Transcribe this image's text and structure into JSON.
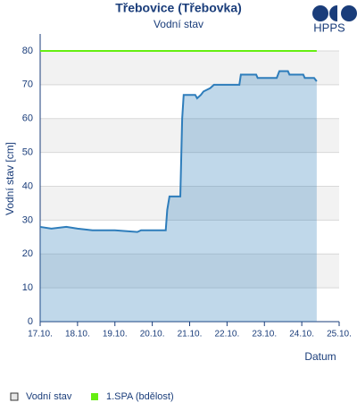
{
  "chart_data": {
    "type": "area",
    "title": "Třebovice (Třebovka)",
    "subtitle": "Vodní stav",
    "logo": "HPPS",
    "ylabel": "Vodní stav [cm]",
    "xlabel": "Datum",
    "xlim": [
      17,
      25
    ],
    "xticks": [
      {
        "value": 17,
        "label": "17.10."
      },
      {
        "value": 18,
        "label": "18.10."
      },
      {
        "value": 19,
        "label": "19.10."
      },
      {
        "value": 20,
        "label": "20.10."
      },
      {
        "value": 21,
        "label": "21.10."
      },
      {
        "value": 22,
        "label": "22.10."
      },
      {
        "value": 23,
        "label": "23.10."
      },
      {
        "value": 24,
        "label": "24.10."
      },
      {
        "value": 25,
        "label": "25.10."
      }
    ],
    "ylim": [
      0,
      85
    ],
    "yticks": [
      0,
      10,
      20,
      30,
      40,
      50,
      60,
      70,
      80
    ],
    "grid": true,
    "legend": "bottom",
    "series": [
      {
        "name": "Vodní stav",
        "color": "#2e7dbb",
        "x": [
          17,
          17.3,
          17.7,
          18,
          18.4,
          19,
          19.6,
          19.7,
          20,
          20.36,
          20.4,
          20.46,
          20.75,
          20.8,
          20.84,
          21.15,
          21.2,
          21.3,
          21.37,
          21.55,
          21.65,
          22.33,
          22.37,
          22.78,
          22.82,
          23.33,
          23.4,
          23.63,
          23.67,
          24.04,
          24.08,
          24.33,
          24.4
        ],
        "values": [
          28,
          27.5,
          28,
          27.5,
          27,
          27,
          26.5,
          27,
          27,
          27,
          33,
          37,
          37,
          60,
          67,
          67,
          66,
          67,
          68,
          69,
          70,
          70,
          73,
          73,
          72,
          72,
          74,
          74,
          73,
          73,
          72,
          72,
          71
        ]
      },
      {
        "name": "1.SPA (bdělost)",
        "color": "#66ee11",
        "x": [
          17,
          24.4
        ],
        "values": [
          80,
          80
        ]
      }
    ]
  }
}
